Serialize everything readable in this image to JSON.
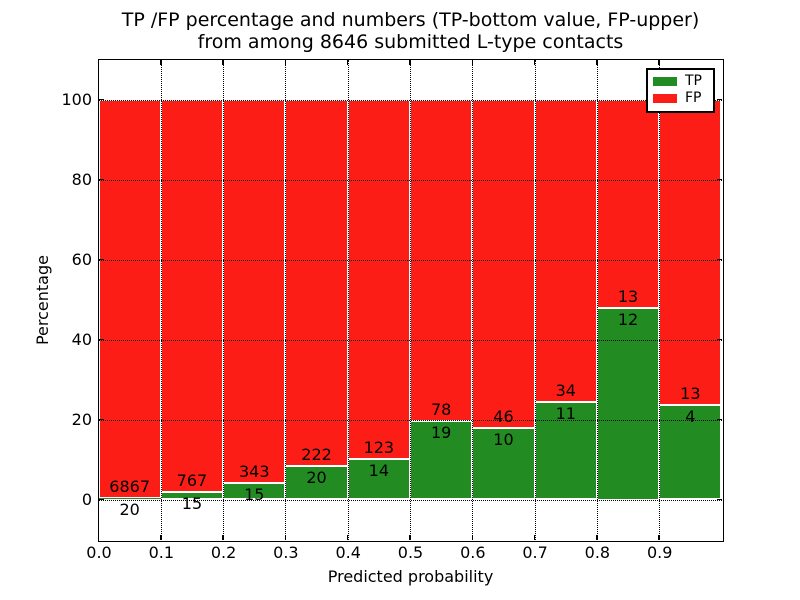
{
  "chart_data": {
    "type": "bar",
    "stacked": true,
    "title_line1": "TP /FP percentage and numbers (TP-bottom value, FP-upper)",
    "title_line2": "from among 8646 submitted L-type contacts",
    "xlabel": "Predicted probability",
    "ylabel": "Percentage",
    "total_submitted_contacts": 8646,
    "xlim": [
      0.0,
      1.0
    ],
    "ylim": [
      -10,
      110
    ],
    "grid": true,
    "grid_style": "dotted",
    "x_tick_labels": [
      "0.0",
      "0.1",
      "0.2",
      "0.3",
      "0.4",
      "0.5",
      "0.6",
      "0.7",
      "0.8",
      "0.9"
    ],
    "y_tick_labels": [
      "0",
      "20",
      "40",
      "60",
      "80",
      "100"
    ],
    "colors": {
      "tp": "#228b22",
      "fp": "#fc1d16"
    },
    "legend": {
      "position": "upper right",
      "entries": [
        {
          "label": "TP",
          "color": "#228b22"
        },
        {
          "label": "FP",
          "color": "#fc1d16"
        }
      ]
    },
    "bins": [
      {
        "x_range": [
          0.0,
          0.1
        ],
        "tp_count": 20,
        "fp_count": 6867,
        "tp_percent": 0.29,
        "fp_percent": 99.71
      },
      {
        "x_range": [
          0.1,
          0.2
        ],
        "tp_count": 15,
        "fp_count": 767,
        "tp_percent": 1.92,
        "fp_percent": 98.08
      },
      {
        "x_range": [
          0.2,
          0.3
        ],
        "tp_count": 15,
        "fp_count": 343,
        "tp_percent": 4.19,
        "fp_percent": 95.81
      },
      {
        "x_range": [
          0.3,
          0.4
        ],
        "tp_count": 20,
        "fp_count": 222,
        "tp_percent": 8.26,
        "fp_percent": 91.74
      },
      {
        "x_range": [
          0.4,
          0.5
        ],
        "tp_count": 14,
        "fp_count": 123,
        "tp_percent": 10.22,
        "fp_percent": 89.78
      },
      {
        "x_range": [
          0.5,
          0.6
        ],
        "tp_count": 19,
        "fp_count": 78,
        "tp_percent": 19.59,
        "fp_percent": 80.41
      },
      {
        "x_range": [
          0.6,
          0.7
        ],
        "tp_count": 10,
        "fp_count": 46,
        "tp_percent": 17.86,
        "fp_percent": 82.14
      },
      {
        "x_range": [
          0.7,
          0.8
        ],
        "tp_count": 11,
        "fp_count": 34,
        "tp_percent": 24.44,
        "fp_percent": 75.56
      },
      {
        "x_range": [
          0.8,
          0.9
        ],
        "tp_count": 12,
        "fp_count": 13,
        "tp_percent": 48.0,
        "fp_percent": 52.0
      },
      {
        "x_range": [
          0.9,
          1.0
        ],
        "tp_count": 4,
        "fp_count": 13,
        "tp_percent": 23.53,
        "fp_percent": 76.47
      }
    ]
  }
}
